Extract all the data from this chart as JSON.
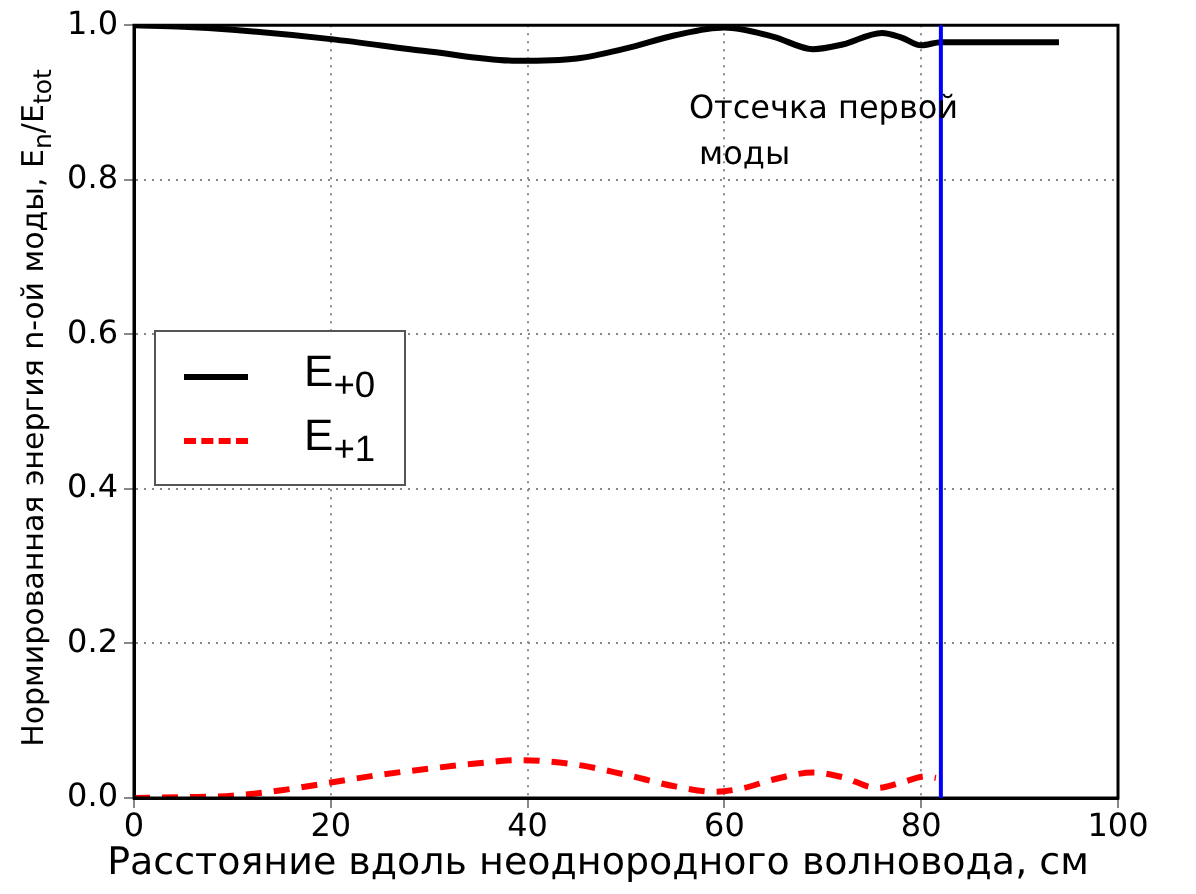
{
  "chart_data": {
    "type": "line",
    "xlabel": "Расстояние вдоль неоднородного волновода, см",
    "ylabel": "Нормированная энергия n-ой моды, E$_{n}$/E$_{tot}$",
    "xlim": [
      0,
      100
    ],
    "xticks": [
      0,
      20,
      40,
      60,
      80,
      100
    ],
    "ylim": [
      0,
      1
    ],
    "yticks": [
      {
        "value": 0,
        "label": "0.0"
      },
      0.2,
      0.4,
      0.6,
      0.8,
      {
        "value": 1,
        "label": "1.0"
      }
    ],
    "grid": true,
    "legend": "left",
    "marker": "none",
    "series": [
      {
        "name": "E$_{+0}$",
        "color": "#000000",
        "line_style": "solid",
        "x": [
          0,
          5,
          10,
          20,
          30,
          39,
          45,
          50,
          55,
          60,
          65,
          69,
          72,
          76,
          78,
          80,
          82,
          94
        ],
        "values": [
          1.0,
          0.998,
          0.994,
          0.982,
          0.966,
          0.954,
          0.957,
          0.97,
          0.987,
          0.997,
          0.985,
          0.969,
          0.975,
          0.99,
          0.984,
          0.974,
          0.978,
          0.978
        ]
      },
      {
        "name": "E$_{+1}$",
        "color": "#ff0000",
        "line_style": "dashed",
        "x": [
          0,
          5,
          10,
          15,
          20,
          25,
          30,
          35,
          39,
          45,
          50,
          55,
          59,
          62,
          65,
          69,
          72,
          75.5,
          78,
          80.5,
          81.5
        ],
        "values": [
          0,
          0.001,
          0.003,
          0.01,
          0.02,
          0.03,
          0.038,
          0.045,
          0.049,
          0.043,
          0.03,
          0.015,
          0.008,
          0.013,
          0.024,
          0.033,
          0.027,
          0.013,
          0.02,
          0.028,
          0.026
        ]
      }
    ],
    "ref_lines": [
      {
        "axis": "x",
        "value": 82,
        "label": "Отсечка первой\n моды",
        "color": "#0000ff",
        "line_style": "solid"
      }
    ]
  }
}
